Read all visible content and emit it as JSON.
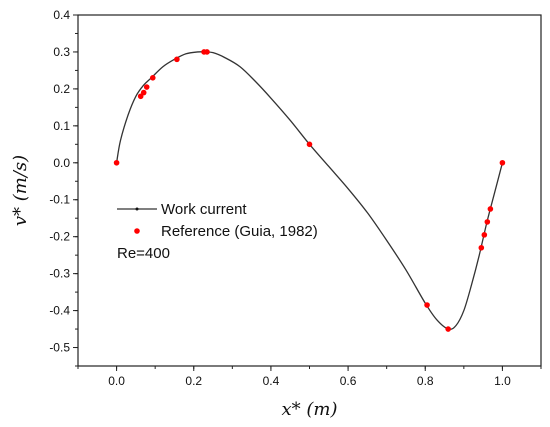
{
  "chart_data": {
    "type": "line",
    "xlabel": "x* (m)",
    "ylabel": "v* (m/s)",
    "xlim": [
      -0.1,
      1.1
    ],
    "ylim": [
      -0.55,
      0.4
    ],
    "xticks": [
      "0.0",
      "0.2",
      "0.4",
      "0.6",
      "0.8",
      "1.0"
    ],
    "yticks": [
      "0.4",
      "0.3",
      "0.2",
      "0.1",
      "0.0",
      "-0.1",
      "-0.2",
      "-0.3",
      "-0.4",
      "-0.5"
    ],
    "grid": false,
    "legend_position": "center-left",
    "annotation": "Re=400",
    "series": [
      {
        "name": "Work current",
        "kind": "line",
        "color": "#333333",
        "x": [
          0.0,
          0.01,
          0.03,
          0.05,
          0.07,
          0.09,
          0.12,
          0.15,
          0.18,
          0.21,
          0.23,
          0.25,
          0.28,
          0.32,
          0.36,
          0.4,
          0.45,
          0.5,
          0.55,
          0.6,
          0.65,
          0.7,
          0.75,
          0.8,
          0.83,
          0.86,
          0.88,
          0.9,
          0.92,
          0.94,
          0.96,
          0.98,
          1.0
        ],
        "y": [
          0.0,
          0.06,
          0.13,
          0.18,
          0.21,
          0.23,
          0.26,
          0.28,
          0.295,
          0.3,
          0.3,
          0.298,
          0.285,
          0.26,
          0.22,
          0.175,
          0.115,
          0.05,
          -0.01,
          -0.07,
          -0.135,
          -0.21,
          -0.29,
          -0.38,
          -0.425,
          -0.45,
          -0.44,
          -0.4,
          -0.33,
          -0.25,
          -0.16,
          -0.08,
          0.0
        ]
      },
      {
        "name": "Reference (Guia, 1982)",
        "kind": "scatter",
        "color": "#ff0000",
        "x": [
          0.0,
          0.0625,
          0.0703,
          0.0781,
          0.0938,
          0.1563,
          0.2266,
          0.2344,
          0.5,
          0.8047,
          0.8594,
          0.9453,
          0.9531,
          0.9609,
          0.9688,
          1.0
        ],
        "y": [
          0.0,
          0.18,
          0.19,
          0.205,
          0.23,
          0.28,
          0.3,
          0.3,
          0.05,
          -0.385,
          -0.45,
          -0.23,
          -0.195,
          -0.16,
          -0.125,
          0.0
        ]
      }
    ]
  }
}
